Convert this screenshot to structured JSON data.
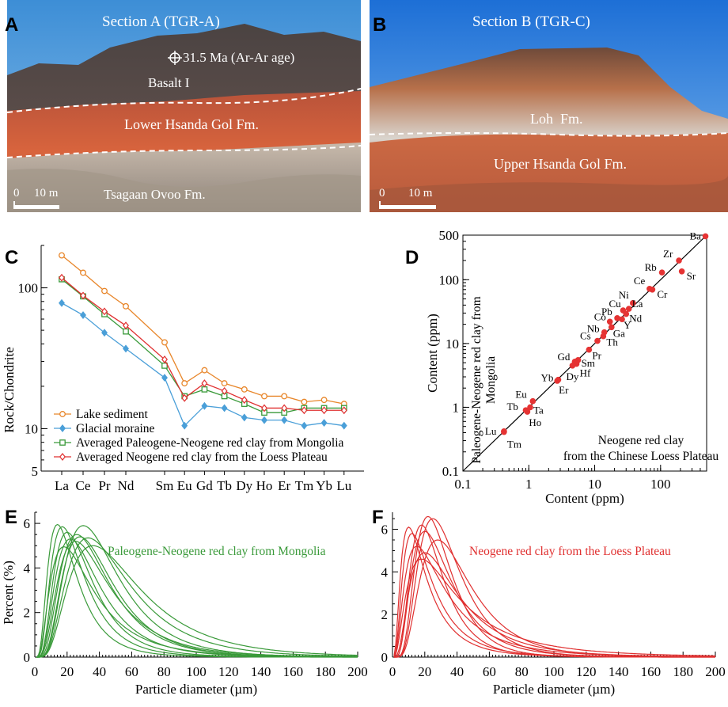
{
  "panels": {
    "A": {
      "letter": "A",
      "title": "Section A (TGR-A)",
      "age_label": "31.5 Ma (Ar-Ar age)",
      "unit_upper": "Basalt I",
      "unit_middle": "Lower Hsanda Gol Fm.",
      "unit_lower": "Tsagaan Ovoo Fm.",
      "scale_zero": "0",
      "scale_label": "10 m"
    },
    "B": {
      "letter": "B",
      "title": "Section B (TGR-C)",
      "unit_upper": "Loh  Fm.",
      "unit_lower": "Upper Hsanda Gol Fm.",
      "scale_zero": "0",
      "scale_label": "10 m"
    },
    "C": {
      "letter": "C"
    },
    "D": {
      "letter": "D"
    },
    "E": {
      "letter": "E"
    },
    "F": {
      "letter": "F"
    }
  },
  "colors": {
    "lake": "#e8862a",
    "moraine": "#4a9fd8",
    "mongolia": "#3a9a3a",
    "loess": "#e03030",
    "point_red": "#e53333"
  },
  "chart_data": [
    {
      "id": "C",
      "type": "line",
      "title": "",
      "xlabel": "",
      "ylabel": "Rock/Chondrite",
      "y_scale": "log",
      "ylim": [
        5,
        200
      ],
      "y_ticks": [
        5,
        10,
        100
      ],
      "categories": [
        "La",
        "Ce",
        "Pr",
        "Nd",
        "Sm",
        "Eu",
        "Gd",
        "Tb",
        "Dy",
        "Ho",
        "Er",
        "Tm",
        "Yb",
        "Lu"
      ],
      "legend_position": "bottom-left",
      "series": [
        {
          "name": "Lake sediment",
          "marker": "circle",
          "color": "#e8862a",
          "values": [
            170,
            128,
            95,
            74,
            41,
            21,
            26,
            21,
            19,
            17,
            17,
            15.5,
            16,
            15
          ]
        },
        {
          "name": "Glacial moraine",
          "marker": "diamond",
          "color": "#4a9fd8",
          "values": [
            78,
            64,
            48,
            37,
            23,
            10.5,
            14.5,
            14,
            12,
            11.5,
            11.5,
            10.5,
            11,
            10.5
          ]
        },
        {
          "name": "Averaged Paleogene-Neogene red clay from Mongolia",
          "marker": "square",
          "color": "#3a9a3a",
          "values": [
            115,
            87,
            65,
            49,
            28,
            17,
            19,
            17,
            15,
            13,
            13,
            14,
            14,
            14
          ]
        },
        {
          "name": "Averaged Neogene red clay from the Loess Plateau",
          "marker": "diamond",
          "color": "#e03030",
          "values": [
            118,
            88,
            68,
            54,
            31,
            16.5,
            21,
            18.5,
            16,
            14,
            14,
            13.5,
            13.5,
            13.5
          ]
        }
      ]
    },
    {
      "id": "D",
      "type": "scatter",
      "title": "",
      "xlabel": "Content (ppm)",
      "ylabel": "Content (ppm)",
      "x_scale": "log",
      "y_scale": "log",
      "xlim": [
        0.1,
        500
      ],
      "ylim": [
        0.1,
        500
      ],
      "x_ticks": [
        0.1,
        1,
        10,
        100
      ],
      "y_ticks": [
        0.1,
        1,
        10,
        100,
        500
      ],
      "annotation_y_axis": "Paleogene-Neogene red clay from Mongolia",
      "annotation_x_axis": "Neogene red clay from the Chinese Loess Plateau",
      "reference_line": "1:1",
      "points": [
        {
          "label": "Ba",
          "x": 480,
          "y": 480
        },
        {
          "label": "Zr",
          "x": 190,
          "y": 200
        },
        {
          "label": "Rb",
          "x": 105,
          "y": 130
        },
        {
          "label": "Sr",
          "x": 210,
          "y": 135
        },
        {
          "label": "Ce",
          "x": 68,
          "y": 72
        },
        {
          "label": "Cr",
          "x": 75,
          "y": 70
        },
        {
          "label": "Ni",
          "x": 38,
          "y": 43
        },
        {
          "label": "Cu",
          "x": 27,
          "y": 33
        },
        {
          "label": "La",
          "x": 33,
          "y": 35
        },
        {
          "label": "Pb",
          "x": 22,
          "y": 25
        },
        {
          "label": "Nd",
          "x": 30,
          "y": 29
        },
        {
          "label": "Co",
          "x": 17,
          "y": 22
        },
        {
          "label": "Y",
          "x": 26,
          "y": 24
        },
        {
          "label": "Ga",
          "x": 18,
          "y": 18
        },
        {
          "label": "Nb",
          "x": 14,
          "y": 15
        },
        {
          "label": "Cs",
          "x": 11,
          "y": 11
        },
        {
          "label": "Th",
          "x": 13.5,
          "y": 13
        },
        {
          "label": "Pr",
          "x": 8.2,
          "y": 8
        },
        {
          "label": "Gd",
          "x": 5,
          "y": 5.2
        },
        {
          "label": "Sm",
          "x": 5.6,
          "y": 5.5
        },
        {
          "label": "Hf",
          "x": 5.3,
          "y": 4.8
        },
        {
          "label": "Dy",
          "x": 4.6,
          "y": 4.5
        },
        {
          "label": "Yb",
          "x": 2.8,
          "y": 2.7
        },
        {
          "label": "Er",
          "x": 2.7,
          "y": 2.6
        },
        {
          "label": "Eu",
          "x": 1.15,
          "y": 1.25
        },
        {
          "label": "Ta",
          "x": 1.05,
          "y": 1.0
        },
        {
          "label": "Tb",
          "x": 0.9,
          "y": 0.9
        },
        {
          "label": "Ho",
          "x": 0.95,
          "y": 0.85
        },
        {
          "label": "Lu",
          "x": 0.42,
          "y": 0.42
        },
        {
          "label": "Tm",
          "x": 0.42,
          "y": 0.41
        }
      ]
    },
    {
      "id": "E",
      "type": "line",
      "title": "",
      "xlabel": "Particle diameter (µm)",
      "ylabel": "Percent (%)",
      "xlim": [
        0,
        200
      ],
      "ylim": [
        0,
        6.5
      ],
      "x_ticks": [
        0,
        20,
        40,
        60,
        80,
        100,
        120,
        140,
        160,
        180,
        200
      ],
      "y_ticks": [
        0,
        2,
        4,
        6
      ],
      "annotation": "Paleogene-Neogene red clay from Mongolia",
      "curve_form": "lognormal-like grain size distributions",
      "series": [
        {
          "mode_um": 14,
          "peak_pct": 5.95,
          "width": 0.62
        },
        {
          "mode_um": 17,
          "peak_pct": 5.85,
          "width": 0.6
        },
        {
          "mode_um": 20,
          "peak_pct": 5.6,
          "width": 0.58
        },
        {
          "mode_um": 22,
          "peak_pct": 5.3,
          "width": 0.6
        },
        {
          "mode_um": 25,
          "peak_pct": 5.2,
          "width": 0.62
        },
        {
          "mode_um": 26,
          "peak_pct": 5.5,
          "width": 0.57
        },
        {
          "mode_um": 28,
          "peak_pct": 5.4,
          "width": 0.55
        },
        {
          "mode_um": 30,
          "peak_pct": 5.9,
          "width": 0.55
        },
        {
          "mode_um": 33,
          "peak_pct": 5.35,
          "width": 0.58
        },
        {
          "mode_um": 18,
          "peak_pct": 4.95,
          "width": 0.7
        },
        {
          "mode_um": 36,
          "peak_pct": 5.0,
          "width": 0.6
        }
      ]
    },
    {
      "id": "F",
      "type": "line",
      "title": "",
      "xlabel": "Particle diameter (µm)",
      "ylabel": "",
      "xlim": [
        0,
        200
      ],
      "ylim": [
        0,
        6.8
      ],
      "x_ticks": [
        0,
        20,
        40,
        60,
        80,
        100,
        120,
        140,
        160,
        180,
        200
      ],
      "y_ticks": [
        0,
        2,
        4,
        6
      ],
      "annotation": "Neogene red clay from the Loess Plateau",
      "curve_form": "lognormal-like grain size distributions",
      "series": [
        {
          "mode_um": 10,
          "peak_pct": 6.1,
          "width": 0.75
        },
        {
          "mode_um": 12,
          "peak_pct": 5.8,
          "width": 0.72
        },
        {
          "mode_um": 15,
          "peak_pct": 5.2,
          "width": 0.78
        },
        {
          "mode_um": 18,
          "peak_pct": 6.2,
          "width": 0.55
        },
        {
          "mode_um": 20,
          "peak_pct": 5.9,
          "width": 0.6
        },
        {
          "mode_um": 22,
          "peak_pct": 6.6,
          "width": 0.5
        },
        {
          "mode_um": 25,
          "peak_pct": 6.5,
          "width": 0.52
        },
        {
          "mode_um": 20,
          "peak_pct": 4.9,
          "width": 0.7
        },
        {
          "mode_um": 18,
          "peak_pct": 4.6,
          "width": 0.82
        },
        {
          "mode_um": 28,
          "peak_pct": 5.5,
          "width": 0.55
        }
      ]
    }
  ]
}
